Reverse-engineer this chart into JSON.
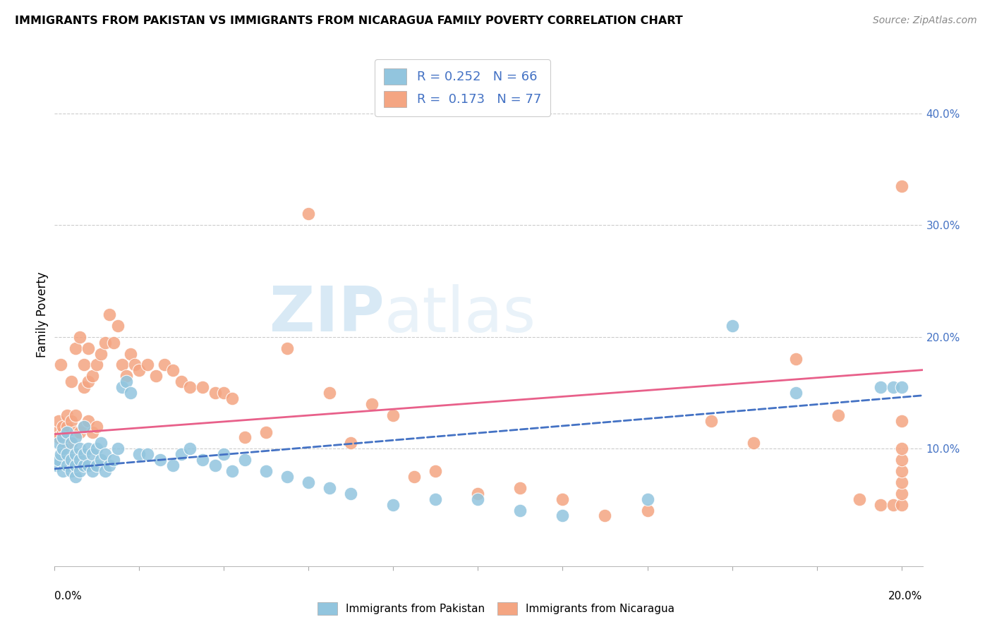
{
  "title": "IMMIGRANTS FROM PAKISTAN VS IMMIGRANTS FROM NICARAGUA FAMILY POVERTY CORRELATION CHART",
  "source": "Source: ZipAtlas.com",
  "ylabel": "Family Poverty",
  "color_pakistan": "#92c5de",
  "color_nicaragua": "#f4a582",
  "color_pakistan_line": "#4472c4",
  "color_nicaragua_line": "#e8608a",
  "color_blue_text": "#4472c4",
  "xlim": [
    0.0,
    0.205
  ],
  "ylim": [
    -0.005,
    0.445
  ],
  "ytick_values": [
    0.1,
    0.2,
    0.3,
    0.4
  ],
  "pk_R": 0.252,
  "pk_N": 66,
  "ni_R": 0.173,
  "ni_N": 77,
  "pakistan_x": [
    0.0005,
    0.001,
    0.001,
    0.0015,
    0.002,
    0.002,
    0.002,
    0.003,
    0.003,
    0.003,
    0.004,
    0.004,
    0.004,
    0.005,
    0.005,
    0.005,
    0.005,
    0.006,
    0.006,
    0.006,
    0.007,
    0.007,
    0.007,
    0.008,
    0.008,
    0.009,
    0.009,
    0.01,
    0.01,
    0.011,
    0.011,
    0.012,
    0.012,
    0.013,
    0.014,
    0.015,
    0.016,
    0.017,
    0.018,
    0.02,
    0.022,
    0.025,
    0.028,
    0.03,
    0.032,
    0.035,
    0.038,
    0.04,
    0.042,
    0.045,
    0.05,
    0.055,
    0.06,
    0.065,
    0.07,
    0.08,
    0.09,
    0.1,
    0.11,
    0.12,
    0.14,
    0.16,
    0.175,
    0.195,
    0.198,
    0.2
  ],
  "pakistan_y": [
    0.085,
    0.09,
    0.105,
    0.095,
    0.08,
    0.1,
    0.11,
    0.085,
    0.095,
    0.115,
    0.08,
    0.09,
    0.105,
    0.075,
    0.085,
    0.095,
    0.11,
    0.08,
    0.09,
    0.1,
    0.085,
    0.095,
    0.12,
    0.085,
    0.1,
    0.08,
    0.095,
    0.085,
    0.1,
    0.09,
    0.105,
    0.08,
    0.095,
    0.085,
    0.09,
    0.1,
    0.155,
    0.16,
    0.15,
    0.095,
    0.095,
    0.09,
    0.085,
    0.095,
    0.1,
    0.09,
    0.085,
    0.095,
    0.08,
    0.09,
    0.08,
    0.075,
    0.07,
    0.065,
    0.06,
    0.05,
    0.055,
    0.055,
    0.045,
    0.04,
    0.055,
    0.21,
    0.15,
    0.155,
    0.155,
    0.155
  ],
  "nicaragua_x": [
    0.0005,
    0.001,
    0.001,
    0.0015,
    0.002,
    0.002,
    0.003,
    0.003,
    0.003,
    0.004,
    0.004,
    0.004,
    0.005,
    0.005,
    0.005,
    0.006,
    0.006,
    0.007,
    0.007,
    0.007,
    0.008,
    0.008,
    0.008,
    0.009,
    0.009,
    0.01,
    0.01,
    0.011,
    0.012,
    0.013,
    0.014,
    0.015,
    0.016,
    0.017,
    0.018,
    0.019,
    0.02,
    0.022,
    0.024,
    0.026,
    0.028,
    0.03,
    0.032,
    0.035,
    0.038,
    0.04,
    0.042,
    0.045,
    0.05,
    0.055,
    0.06,
    0.065,
    0.07,
    0.075,
    0.08,
    0.085,
    0.09,
    0.1,
    0.11,
    0.12,
    0.13,
    0.14,
    0.155,
    0.165,
    0.175,
    0.185,
    0.19,
    0.195,
    0.198,
    0.2,
    0.2,
    0.2,
    0.2,
    0.2,
    0.2,
    0.2,
    0.2
  ],
  "nicaragua_y": [
    0.115,
    0.11,
    0.125,
    0.175,
    0.115,
    0.12,
    0.105,
    0.12,
    0.13,
    0.11,
    0.16,
    0.125,
    0.115,
    0.13,
    0.19,
    0.115,
    0.2,
    0.12,
    0.155,
    0.175,
    0.125,
    0.16,
    0.19,
    0.115,
    0.165,
    0.12,
    0.175,
    0.185,
    0.195,
    0.22,
    0.195,
    0.21,
    0.175,
    0.165,
    0.185,
    0.175,
    0.17,
    0.175,
    0.165,
    0.175,
    0.17,
    0.16,
    0.155,
    0.155,
    0.15,
    0.15,
    0.145,
    0.11,
    0.115,
    0.19,
    0.31,
    0.15,
    0.105,
    0.14,
    0.13,
    0.075,
    0.08,
    0.06,
    0.065,
    0.055,
    0.04,
    0.045,
    0.125,
    0.105,
    0.18,
    0.13,
    0.055,
    0.05,
    0.05,
    0.05,
    0.06,
    0.07,
    0.08,
    0.09,
    0.1,
    0.125,
    0.335
  ]
}
